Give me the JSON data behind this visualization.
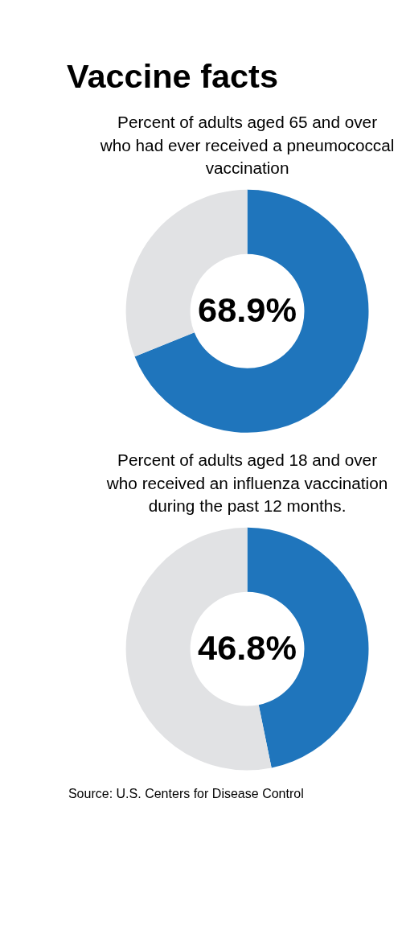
{
  "chart_data": [
    {
      "type": "donut",
      "title": "Vaccine facts",
      "subtitle": "Percent of adults aged 65 and over who had ever received a pneumococcal vaccination",
      "categories": [
        null,
        null
      ],
      "values": [
        68.9,
        31.1
      ],
      "colors": [
        "#1f75bc",
        "#e1e2e4"
      ],
      "value_labels": [
        "68.9%",
        null
      ]
    },
    {
      "type": "donut",
      "subtitle": "Percent of adults aged 18 and over who received an influenza vaccination during the past 12 months.",
      "categories": [
        null,
        null
      ],
      "values": [
        46.8,
        53.2
      ],
      "colors": [
        "#1f75bc",
        "#e1e2e4"
      ],
      "value_labels": [
        "46.8%",
        null
      ],
      "annotations": [
        "Source: U.S. Centers for Disease Control"
      ]
    }
  ]
}
